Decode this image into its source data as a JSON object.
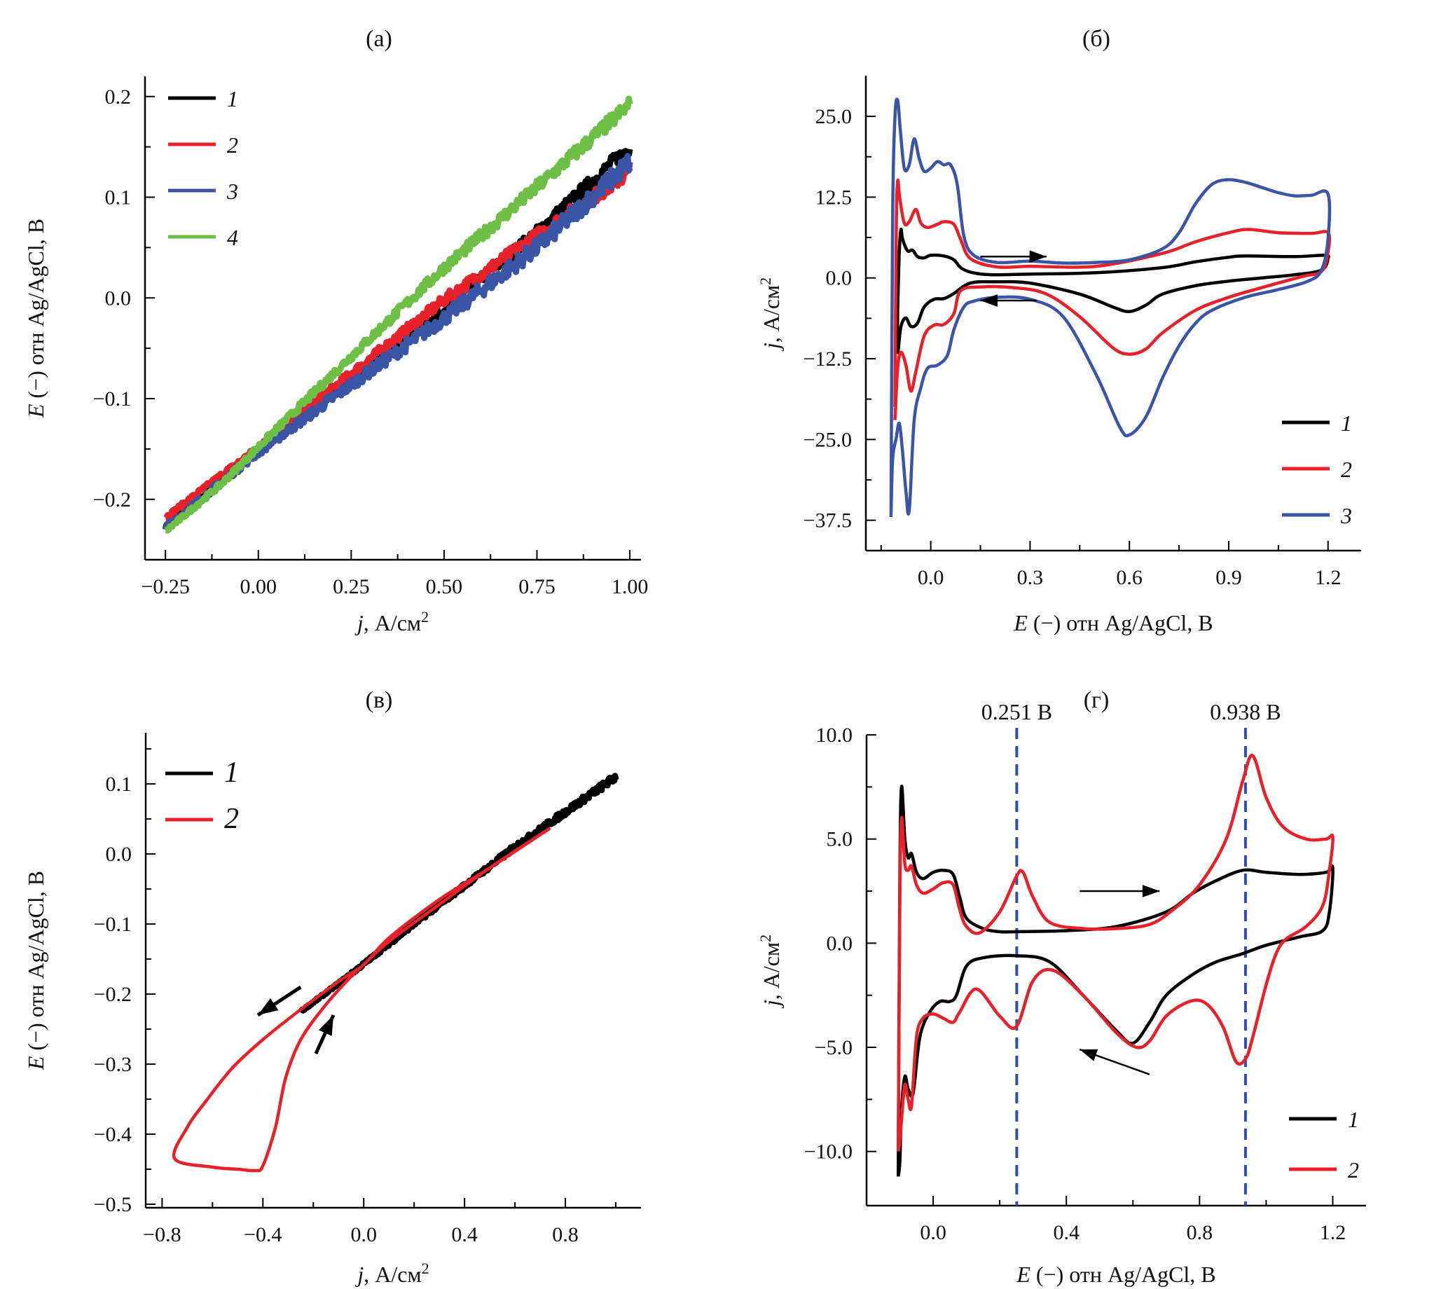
{
  "figure": {
    "colors": {
      "1": "#000000",
      "2": "#e8202a",
      "3": "#3b55a6",
      "4": "#6dbf45",
      "guide": "#2f4fb0"
    }
  },
  "chart_data": [
    {
      "id": "a",
      "type": "line",
      "title": "(a)",
      "xlabel_italic": "j",
      "xlabel_rest": ", А/см",
      "xlabel_sup": "2",
      "ylabel_italic": "E",
      "ylabel_rest": " (−) отн Ag/AgCl, В",
      "xlim": [
        -0.305,
        1.03
      ],
      "ylim": [
        -0.26,
        0.22
      ],
      "xticks": [
        -0.25,
        0.0,
        0.25,
        0.5,
        0.75,
        1.0
      ],
      "xtick_labels": [
        "−0.25",
        "0.00",
        "0.25",
        "0.50",
        "0.75",
        "1.00"
      ],
      "xminor": [
        -0.125,
        0.125,
        0.375,
        0.625,
        0.875
      ],
      "yticks": [
        0.2,
        0.1,
        0.0,
        -0.1,
        -0.2
      ],
      "ytick_labels": [
        "0.2",
        "0.1",
        "0.0",
        "−0.1",
        "−0.2"
      ],
      "yminor": [
        0.15,
        0.05,
        -0.05,
        -0.15
      ],
      "legend": {
        "position": "top-left",
        "entries": [
          "1",
          "2",
          "3",
          "4"
        ]
      },
      "series": [
        {
          "name": "1",
          "color_key": "1",
          "noise": 0.012,
          "x": [
            -0.25,
            -0.1,
            0.0,
            0.25,
            0.5,
            0.75,
            1.0
          ],
          "y": [
            -0.228,
            -0.182,
            -0.152,
            -0.083,
            -0.012,
            0.065,
            0.15
          ]
        },
        {
          "name": "2",
          "color_key": "2",
          "noise": 0.012,
          "x": [
            -0.25,
            -0.1,
            0.0,
            0.25,
            0.5,
            0.75,
            1.0
          ],
          "y": [
            -0.218,
            -0.176,
            -0.149,
            -0.075,
            -0.002,
            0.062,
            0.125
          ]
        },
        {
          "name": "3",
          "color_key": "3",
          "noise": 0.016,
          "x": [
            -0.25,
            -0.1,
            0.0,
            0.25,
            0.5,
            0.75,
            1.0
          ],
          "y": [
            -0.228,
            -0.183,
            -0.153,
            -0.086,
            -0.02,
            0.05,
            0.135
          ]
        },
        {
          "name": "4",
          "color_key": "4",
          "noise": 0.012,
          "x": [
            -0.25,
            -0.1,
            0.0,
            0.25,
            0.5,
            0.75,
            1.0
          ],
          "y": [
            -0.232,
            -0.185,
            -0.148,
            -0.058,
            0.03,
            0.11,
            0.192
          ]
        }
      ]
    },
    {
      "id": "b",
      "type": "line",
      "title": "(б)",
      "xlabel_italic": "E",
      "xlabel_rest": " (−) отн Ag/AgCl, В",
      "xlabel_sup": "",
      "ylabel_italic": "j",
      "ylabel_rest": ", А/см",
      "ylabel_sup": "2",
      "xlim": [
        -0.196,
        1.3
      ],
      "ylim": [
        -42.2,
        31.3
      ],
      "xticks": [
        0.0,
        0.3,
        0.6,
        0.9,
        1.2
      ],
      "xtick_labels": [
        "0.0",
        "0.3",
        "0.6",
        "0.9",
        "1.2"
      ],
      "xminor": [
        -0.15,
        0.15,
        0.45,
        0.75,
        1.05
      ],
      "yticks": [
        25.0,
        12.5,
        0.0,
        -12.5,
        -25.0,
        -37.5
      ],
      "ytick_labels": [
        "25.0",
        "12.5",
        "0.0",
        "−12.5",
        "−25.0",
        "−37.5"
      ],
      "yminor": [
        18.75,
        6.25,
        -6.25,
        -18.75,
        -31.25
      ],
      "legend": {
        "position": "bottom-right",
        "entries": [
          "1",
          "2",
          "3"
        ]
      },
      "arrows": [
        {
          "from": [
            0.15,
            3.3
          ],
          "to": [
            0.35,
            3.3
          ]
        },
        {
          "from": [
            0.32,
            -3.5
          ],
          "to": [
            0.15,
            -3.5
          ]
        }
      ],
      "series": [
        {
          "name": "1",
          "color_key": "1",
          "x": [
            -0.1,
            -0.095,
            -0.09,
            -0.085,
            -0.07,
            -0.055,
            -0.04,
            -0.02,
            0.0,
            0.04,
            0.07,
            0.09,
            0.12,
            0.18,
            0.3,
            0.5,
            0.7,
            0.8,
            0.9,
            0.95,
            1.1,
            1.19,
            1.2,
            1.18,
            1.1,
            1.0,
            0.9,
            0.8,
            0.7,
            0.65,
            0.6,
            0.55,
            0.45,
            0.3,
            0.2,
            0.12,
            0.07,
            0.04,
            0.01,
            -0.02,
            -0.04,
            -0.06,
            -0.075,
            -0.09,
            -0.1,
            -0.1
          ],
          "y": [
            -5,
            4,
            7.5,
            6,
            4.2,
            4.3,
            3.3,
            3.1,
            3.5,
            3.4,
            2.8,
            1.6,
            0.9,
            0.5,
            0.6,
            0.8,
            1.6,
            2.5,
            3.2,
            3.4,
            3.3,
            3.5,
            3.0,
            1.2,
            0.5,
            0.0,
            -0.5,
            -1.2,
            -2.5,
            -4.2,
            -5.2,
            -4.5,
            -2.5,
            -0.8,
            -0.6,
            -0.8,
            -2.4,
            -3.2,
            -3.3,
            -4.5,
            -7.0,
            -7.5,
            -6.2,
            -7.5,
            -11.5,
            -5
          ]
        },
        {
          "name": "2",
          "color_key": "2",
          "x": [
            -0.108,
            -0.104,
            -0.1,
            -0.094,
            -0.08,
            -0.065,
            -0.045,
            -0.03,
            -0.01,
            0.02,
            0.04,
            0.07,
            0.09,
            0.12,
            0.2,
            0.3,
            0.5,
            0.7,
            0.8,
            0.9,
            0.96,
            1.05,
            1.15,
            1.2,
            1.2,
            1.18,
            1.12,
            1.0,
            0.9,
            0.8,
            0.7,
            0.65,
            0.6,
            0.55,
            0.45,
            0.35,
            0.25,
            0.15,
            0.09,
            0.07,
            0.04,
            0.01,
            -0.02,
            -0.045,
            -0.06,
            -0.075,
            -0.09,
            -0.1,
            -0.108
          ],
          "y": [
            -20,
            8,
            15,
            12.5,
            8.5,
            8.7,
            10.6,
            8.5,
            7.8,
            8.3,
            8.7,
            8.3,
            6.0,
            3.0,
            1.7,
            1.8,
            1.8,
            3.8,
            5.6,
            7.0,
            7.5,
            7.0,
            6.9,
            7.0,
            4.0,
            1.0,
            0.2,
            -1.5,
            -3.0,
            -5.0,
            -8.5,
            -11.0,
            -11.8,
            -10.8,
            -6.0,
            -2.5,
            -1.5,
            -1.4,
            -2.0,
            -5.5,
            -7.2,
            -7.3,
            -9.0,
            -14.5,
            -17.5,
            -13.5,
            -11.5,
            -14.0,
            -22
          ]
        },
        {
          "name": "3",
          "color_key": "3",
          "x": [
            -0.12,
            -0.115,
            -0.108,
            -0.1,
            -0.092,
            -0.08,
            -0.065,
            -0.05,
            -0.035,
            -0.02,
            0.0,
            0.02,
            0.04,
            0.06,
            0.08,
            0.1,
            0.13,
            0.2,
            0.3,
            0.4,
            0.5,
            0.6,
            0.7,
            0.75,
            0.8,
            0.85,
            0.9,
            0.95,
            1.0,
            1.05,
            1.1,
            1.15,
            1.2,
            1.2,
            1.18,
            1.14,
            1.05,
            0.95,
            0.85,
            0.8,
            0.75,
            0.7,
            0.65,
            0.6,
            0.57,
            0.5,
            0.4,
            0.3,
            0.2,
            0.13,
            0.1,
            0.07,
            0.05,
            0.02,
            -0.01,
            -0.03,
            -0.05,
            -0.065,
            -0.075,
            -0.085,
            -0.095,
            -0.105,
            -0.115,
            -0.12
          ],
          "y": [
            -37,
            10,
            25,
            27.5,
            23,
            17,
            17.5,
            21.5,
            18.5,
            16.5,
            17,
            18,
            17.5,
            17.5,
            14.5,
            6.5,
            3.5,
            2.4,
            2.6,
            2.3,
            2.4,
            2.8,
            4.5,
            7.0,
            11.5,
            14.5,
            15.2,
            14.8,
            14.0,
            13.2,
            12.7,
            12.8,
            13.0,
            6.0,
            1.2,
            -0.5,
            -1.8,
            -3.0,
            -5.0,
            -7.0,
            -10.5,
            -15.5,
            -21.5,
            -24.3,
            -23.0,
            -15.0,
            -6.0,
            -3.3,
            -3.0,
            -3.6,
            -4.5,
            -8.0,
            -12.0,
            -13.5,
            -14.0,
            -17.0,
            -22.0,
            -36.0,
            -33.0,
            -27.0,
            -22.5,
            -25.0,
            -28.0,
            -37
          ]
        }
      ]
    },
    {
      "id": "v",
      "type": "line",
      "title": "(в)",
      "xlabel_italic": "j",
      "xlabel_rest": ", А/см",
      "xlabel_sup": "2",
      "ylabel_italic": "E",
      "ylabel_rest": " (−) отн Ag/AgCl, В",
      "xlim": [
        -0.865,
        1.1
      ],
      "ylim": [
        -0.505,
        0.173
      ],
      "xticks": [
        -0.8,
        -0.4,
        0.0,
        0.4,
        0.8
      ],
      "xtick_labels": [
        "−0.8",
        "−0.4",
        "0.0",
        "0.4",
        "0.8"
      ],
      "xminor": [
        -0.6,
        -0.2,
        0.2,
        0.6,
        1.0
      ],
      "yticks": [
        0.1,
        0.0,
        -0.1,
        -0.2,
        -0.3,
        -0.4,
        -0.5
      ],
      "ytick_labels": [
        "0.1",
        "0.0",
        "−0.1",
        "−0.2",
        "−0.3",
        "−0.4",
        "−0.5"
      ],
      "yminor": [
        0.15,
        0.05,
        -0.05,
        -0.15,
        -0.25,
        -0.35,
        -0.45
      ],
      "legend": {
        "position": "top-left",
        "entries": [
          "1",
          "2"
        ]
      },
      "arrows": [
        {
          "from": [
            -0.25,
            -0.19
          ],
          "to": [
            -0.42,
            -0.23
          ]
        },
        {
          "from": [
            -0.19,
            -0.285
          ],
          "to": [
            -0.12,
            -0.23
          ]
        }
      ],
      "series": [
        {
          "name": "1",
          "color_key": "1",
          "noise": 0.008,
          "x": [
            -0.25,
            -0.1,
            0.0,
            0.2,
            0.4,
            0.6,
            0.8,
            1.0
          ],
          "y": [
            -0.225,
            -0.185,
            -0.157,
            -0.1,
            -0.045,
            0.01,
            0.06,
            0.11
          ]
        },
        {
          "name": "2",
          "color_key": "2",
          "x": [
            0.74,
            0.5,
            0.3,
            0.1,
            0.0,
            -0.1,
            -0.25,
            -0.4,
            -0.52,
            -0.62,
            -0.7,
            -0.75,
            -0.6,
            -0.5,
            -0.43,
            -0.4,
            -0.35,
            -0.31,
            -0.25,
            -0.15,
            -0.05,
            0.0,
            0.1,
            0.3,
            0.5,
            0.74
          ],
          "y": [
            0.037,
            -0.02,
            -0.065,
            -0.12,
            -0.158,
            -0.182,
            -0.222,
            -0.265,
            -0.305,
            -0.35,
            -0.39,
            -0.435,
            -0.447,
            -0.45,
            -0.452,
            -0.445,
            -0.39,
            -0.32,
            -0.265,
            -0.215,
            -0.175,
            -0.158,
            -0.125,
            -0.072,
            -0.02,
            0.037
          ]
        }
      ]
    },
    {
      "id": "g",
      "type": "line",
      "title": "(г)",
      "xlabel_italic": "E",
      "xlabel_rest": " (−) отн Ag/AgCl, В",
      "xlabel_sup": "",
      "ylabel_italic": "j",
      "ylabel_rest": ", А/см",
      "ylabel_sup": "2",
      "xlim": [
        -0.2,
        1.3
      ],
      "ylim": [
        -12.6,
        10.0
      ],
      "xticks": [
        0.0,
        0.4,
        0.8,
        1.2
      ],
      "xtick_labels": [
        "0.0",
        "0.4",
        "0.8",
        "1.2"
      ],
      "xminor": [
        -0.2,
        0.2,
        0.6,
        1.0
      ],
      "yticks": [
        10.0,
        5.0,
        0.0,
        -5.0,
        -10.0
      ],
      "ytick_labels": [
        "10.0",
        "5.0",
        "0.0",
        "−5.0",
        "−10.0"
      ],
      "yminor": [
        7.5,
        2.5,
        -2.5,
        -7.5
      ],
      "legend": {
        "position": "bottom-right",
        "entries": [
          "1",
          "2"
        ]
      },
      "guides": [
        {
          "x": 0.251,
          "label": "0.251 В"
        },
        {
          "x": 0.938,
          "label": "0.938 В"
        }
      ],
      "arrows": [
        {
          "from": [
            0.44,
            2.5
          ],
          "to": [
            0.68,
            2.5
          ]
        },
        {
          "from": [
            0.65,
            -6.3
          ],
          "to": [
            0.44,
            -5.1
          ]
        }
      ],
      "series": [
        {
          "name": "1",
          "color_key": "1",
          "x": [
            -0.105,
            -0.1,
            -0.095,
            -0.085,
            -0.075,
            -0.065,
            -0.05,
            -0.03,
            0.0,
            0.03,
            0.06,
            0.08,
            0.1,
            0.15,
            0.2,
            0.25,
            0.4,
            0.55,
            0.7,
            0.78,
            0.85,
            0.93,
            1.0,
            1.1,
            1.18,
            1.2,
            1.19,
            1.17,
            1.1,
            1.0,
            0.93,
            0.85,
            0.78,
            0.7,
            0.65,
            0.6,
            0.55,
            0.45,
            0.35,
            0.25,
            0.15,
            0.1,
            0.07,
            0.05,
            0.02,
            -0.01,
            -0.04,
            -0.06,
            -0.075,
            -0.085,
            -0.095,
            -0.1,
            -0.105
          ],
          "y": [
            -11.2,
            3,
            7.5,
            5.0,
            4.1,
            4.3,
            3.4,
            3.1,
            3.4,
            3.5,
            3.3,
            2.2,
            1.2,
            0.7,
            0.55,
            0.55,
            0.6,
            0.8,
            1.5,
            2.4,
            3.0,
            3.5,
            3.4,
            3.3,
            3.4,
            3.6,
            1.5,
            0.6,
            0.3,
            -0.1,
            -0.5,
            -0.9,
            -1.5,
            -2.5,
            -3.8,
            -4.8,
            -4.2,
            -2.5,
            -0.9,
            -0.6,
            -0.7,
            -1.1,
            -2.5,
            -2.8,
            -2.8,
            -3.3,
            -4.5,
            -7.2,
            -7.0,
            -6.4,
            -8.0,
            -10.5,
            -11.2
          ]
        },
        {
          "name": "2",
          "color_key": "2",
          "x": [
            -0.105,
            -0.1,
            -0.095,
            -0.085,
            -0.075,
            -0.065,
            -0.05,
            -0.03,
            0.0,
            0.03,
            0.06,
            0.08,
            0.1,
            0.14,
            0.2,
            0.25,
            0.27,
            0.3,
            0.35,
            0.45,
            0.55,
            0.65,
            0.72,
            0.8,
            0.88,
            0.93,
            0.96,
            1.0,
            1.05,
            1.12,
            1.18,
            1.2,
            1.19,
            1.17,
            1.12,
            1.06,
            1.03,
            1.0,
            0.96,
            0.94,
            0.91,
            0.87,
            0.82,
            0.77,
            0.7,
            0.65,
            0.61,
            0.55,
            0.45,
            0.36,
            0.3,
            0.25,
            0.2,
            0.13,
            0.08,
            0.06,
            0.03,
            0.0,
            -0.03,
            -0.05,
            -0.065,
            -0.075,
            -0.085,
            -0.095,
            -0.1,
            -0.105
          ],
          "y": [
            -10.0,
            2,
            6.0,
            3.8,
            3.5,
            3.7,
            2.8,
            2.4,
            2.6,
            2.9,
            2.8,
            1.6,
            0.8,
            0.5,
            1.5,
            3.2,
            3.4,
            2.2,
            1.0,
            0.7,
            0.7,
            0.9,
            1.6,
            2.8,
            5.0,
            7.8,
            9.0,
            7.0,
            5.6,
            5.0,
            5.0,
            5.1,
            3.5,
            1.8,
            0.8,
            0.2,
            -0.5,
            -2.0,
            -4.5,
            -5.5,
            -5.7,
            -4.0,
            -2.9,
            -2.8,
            -3.5,
            -4.7,
            -5.0,
            -4.3,
            -2.5,
            -1.3,
            -1.8,
            -4.0,
            -3.5,
            -2.2,
            -3.3,
            -3.8,
            -3.6,
            -3.4,
            -3.6,
            -4.5,
            -7.8,
            -7.5,
            -6.8,
            -8.5,
            -9.5,
            -10.0
          ]
        }
      ]
    }
  ]
}
